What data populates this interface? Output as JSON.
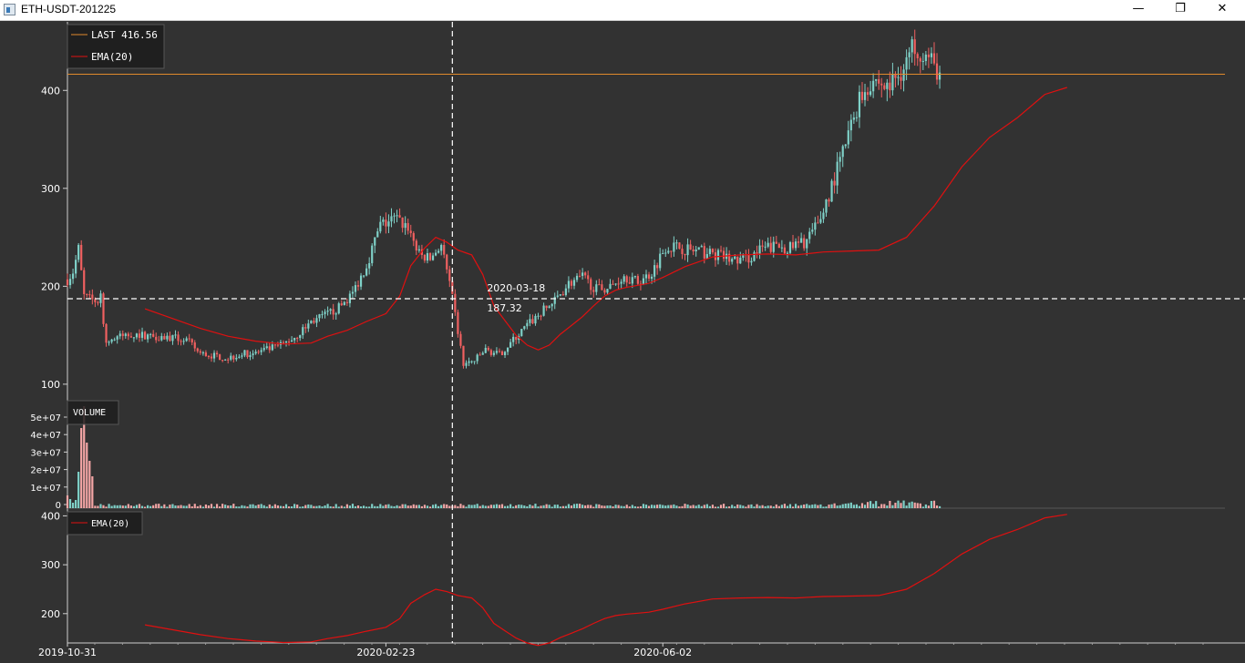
{
  "window": {
    "title": "ETH-USDT-201225",
    "minimize_glyph": "—",
    "maximize_glyph": "❐",
    "close_glyph": "✕"
  },
  "legend": {
    "last_label": "LAST 416.56",
    "ema_label": "EMA(20)",
    "volume_label": "VOLUME",
    "ema_panel_label": "EMA(20)"
  },
  "crosshair": {
    "date_label": "2020-03-18",
    "price_label": "187.32"
  },
  "colors": {
    "up": "#7fd1c8",
    "down": "#f06060",
    "vol_up": "#7fd1c8",
    "vol_down": "#f4a6a6",
    "ema": "#e01010",
    "last": "#e08a2c",
    "crosshair": "#ffffff",
    "background": "#323232"
  },
  "chart_data": {
    "type": "candlestick",
    "symbol": "ETH-USDT-201225",
    "last_price": 416.56,
    "price_axis": {
      "ticks": [
        "100",
        "200",
        "300",
        "400"
      ],
      "ylim": [
        85,
        470
      ]
    },
    "volume_axis": {
      "ticks": [
        "0",
        "1e+07",
        "2e+07",
        "3e+07",
        "4e+07",
        "5e+07"
      ]
    },
    "ema_axis": {
      "ticks": [
        "200",
        "300",
        "400"
      ],
      "ylim": [
        140,
        412
      ]
    },
    "x_ticks": [
      "2019-10-31",
      "2020-02-23",
      "2020-06-02"
    ],
    "start": "2019-10-31",
    "end": "2020-12-22",
    "series": [
      {
        "name": "EMA(20)",
        "points": [
          [
            "2019-11-28",
            177
          ],
          [
            "2019-12-08",
            167
          ],
          [
            "2019-12-18",
            157
          ],
          [
            "2019-12-28",
            149
          ],
          [
            "2020-01-07",
            144
          ],
          [
            "2020-01-17",
            141
          ],
          [
            "2020-01-27",
            142
          ],
          [
            "2020-02-02",
            149
          ],
          [
            "2020-02-09",
            155
          ],
          [
            "2020-02-16",
            164
          ],
          [
            "2020-02-23",
            172
          ],
          [
            "2020-02-28",
            190
          ],
          [
            "2020-03-03",
            221
          ],
          [
            "2020-03-08",
            239
          ],
          [
            "2020-03-12",
            250
          ],
          [
            "2020-03-16",
            245
          ],
          [
            "2020-03-20",
            237
          ],
          [
            "2020-03-25",
            232
          ],
          [
            "2020-03-29",
            212
          ],
          [
            "2020-04-02",
            180
          ],
          [
            "2020-04-06",
            165
          ],
          [
            "2020-04-10",
            150
          ],
          [
            "2020-04-14",
            140
          ],
          [
            "2020-04-18",
            135
          ],
          [
            "2020-04-22",
            140
          ],
          [
            "2020-04-26",
            151
          ],
          [
            "2020-04-30",
            160
          ],
          [
            "2020-05-04",
            169
          ],
          [
            "2020-05-08",
            180
          ],
          [
            "2020-05-12",
            190
          ],
          [
            "2020-05-16",
            196
          ],
          [
            "2020-05-20",
            199
          ],
          [
            "2020-05-24",
            201
          ],
          [
            "2020-05-28",
            203
          ],
          [
            "2020-06-02",
            209
          ],
          [
            "2020-06-10",
            220
          ],
          [
            "2020-06-20",
            230
          ],
          [
            "2020-06-30",
            232
          ],
          [
            "2020-07-10",
            233
          ],
          [
            "2020-07-20",
            232
          ],
          [
            "2020-07-30",
            235
          ],
          [
            "2020-08-09",
            236
          ],
          [
            "2020-08-19",
            237
          ],
          [
            "2020-08-29",
            250
          ],
          [
            "2020-09-08",
            282
          ],
          [
            "2020-09-18",
            322
          ],
          [
            "2020-09-28",
            352
          ],
          [
            "2020-10-08",
            372
          ],
          [
            "2020-10-18",
            396
          ],
          [
            "2020-10-26",
            403
          ]
        ]
      },
      {
        "name": "Price",
        "points": [
          [
            "2019-10-31",
            207
          ],
          [
            "2019-11-02",
            215
          ],
          [
            "2019-11-04",
            238
          ],
          [
            "2019-11-06",
            190
          ],
          [
            "2019-11-08",
            187
          ],
          [
            "2019-11-10",
            185
          ],
          [
            "2019-11-12",
            188
          ],
          [
            "2019-11-14",
            143
          ],
          [
            "2019-11-18",
            148
          ],
          [
            "2019-11-23",
            151
          ],
          [
            "2019-11-28",
            150
          ],
          [
            "2019-12-03",
            149
          ],
          [
            "2019-12-08",
            147
          ],
          [
            "2019-12-13",
            145
          ],
          [
            "2019-12-18",
            131
          ],
          [
            "2019-12-23",
            129
          ],
          [
            "2019-12-28",
            127
          ],
          [
            "2020-01-02",
            131
          ],
          [
            "2020-01-07",
            132
          ],
          [
            "2020-01-12",
            136
          ],
          [
            "2020-01-17",
            141
          ],
          [
            "2020-01-22",
            150
          ],
          [
            "2020-01-27",
            164
          ],
          [
            "2020-02-01",
            170
          ],
          [
            "2020-02-06",
            178
          ],
          [
            "2020-02-11",
            193
          ],
          [
            "2020-02-16",
            222
          ],
          [
            "2020-02-21",
            262
          ],
          [
            "2020-02-26",
            269
          ],
          [
            "2020-03-02",
            261
          ],
          [
            "2020-03-06",
            232
          ],
          [
            "2020-03-10",
            228
          ],
          [
            "2020-03-14",
            243
          ],
          [
            "2020-03-18",
            187
          ],
          [
            "2020-03-22",
            120
          ],
          [
            "2020-03-26",
            124
          ],
          [
            "2020-03-30",
            135
          ],
          [
            "2020-04-04",
            130
          ],
          [
            "2020-04-09",
            145
          ],
          [
            "2020-04-14",
            160
          ],
          [
            "2020-04-19",
            173
          ],
          [
            "2020-04-24",
            185
          ],
          [
            "2020-04-29",
            203
          ],
          [
            "2020-05-04",
            209
          ],
          [
            "2020-05-09",
            197
          ],
          [
            "2020-05-14",
            199
          ],
          [
            "2020-05-19",
            211
          ],
          [
            "2020-05-24",
            204
          ],
          [
            "2020-05-29",
            214
          ],
          [
            "2020-06-03",
            241
          ],
          [
            "2020-06-08",
            240
          ],
          [
            "2020-06-13",
            236
          ],
          [
            "2020-06-18",
            234
          ],
          [
            "2020-06-23",
            231
          ],
          [
            "2020-06-28",
            226
          ],
          [
            "2020-07-03",
            229
          ],
          [
            "2020-07-08",
            238
          ],
          [
            "2020-07-13",
            241
          ],
          [
            "2020-07-18",
            239
          ],
          [
            "2020-07-23",
            245
          ],
          [
            "2020-07-28",
            262
          ],
          [
            "2020-08-02",
            302
          ],
          [
            "2020-08-07",
            345
          ],
          [
            "2020-08-12",
            392
          ],
          [
            "2020-08-17",
            412
          ],
          [
            "2020-08-22",
            402
          ],
          [
            "2020-08-27",
            420
          ],
          [
            "2020-09-01",
            448
          ],
          [
            "2020-09-06",
            432
          ],
          [
            "2020-09-10",
            416.56
          ]
        ]
      }
    ]
  }
}
